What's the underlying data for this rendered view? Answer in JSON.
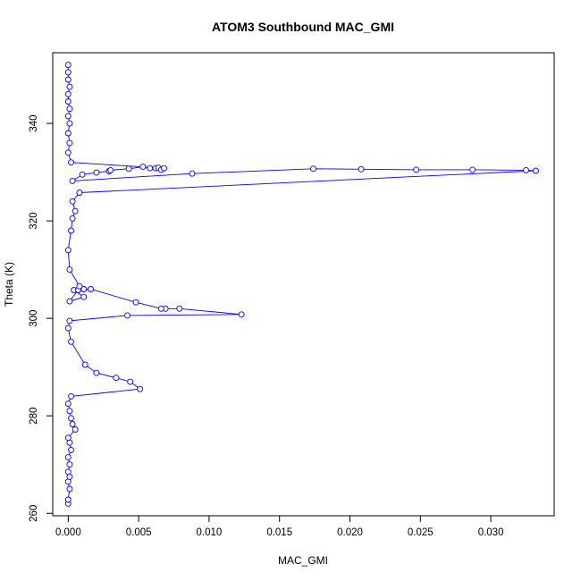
{
  "chart_data": {
    "type": "line",
    "title": "ATOM3 Southbound MAC_GMI",
    "xlabel": "MAC_GMI",
    "ylabel": "Theta (K)",
    "xlim": [
      -0.0011,
      0.0345
    ],
    "ylim": [
      259.5,
      354.5
    ],
    "xticks": [
      0.0,
      0.005,
      0.01,
      0.015,
      0.02,
      0.025,
      0.03
    ],
    "xtick_labels": [
      "0.000",
      "0.005",
      "0.010",
      "0.015",
      "0.020",
      "0.025",
      "0.030"
    ],
    "yticks": [
      260,
      280,
      300,
      320,
      340
    ],
    "ytick_labels": [
      "260",
      "280",
      "300",
      "320",
      "340"
    ],
    "grid": false,
    "legend": "none",
    "series_color": "#0000ff",
    "marker": "open-circle",
    "series": [
      {
        "values": [
          {
            "x": 0.0,
            "y": 262.0
          },
          {
            "x": 0.0,
            "y": 262.8
          },
          {
            "x": 0.0001,
            "y": 265.0
          },
          {
            "x": 0.0,
            "y": 266.5
          },
          {
            "x": 0.0001,
            "y": 267.5
          },
          {
            "x": 0.0,
            "y": 268.5
          },
          {
            "x": 0.0001,
            "y": 270.0
          },
          {
            "x": 0.0,
            "y": 271.5
          },
          {
            "x": 0.0002,
            "y": 273.0
          },
          {
            "x": 0.0001,
            "y": 274.5
          },
          {
            "x": 0.0,
            "y": 275.5
          },
          {
            "x": 0.0005,
            "y": 277.2
          },
          {
            "x": 0.0003,
            "y": 278.3
          },
          {
            "x": 0.0002,
            "y": 279.5
          },
          {
            "x": 0.0001,
            "y": 281.0
          },
          {
            "x": 0.0,
            "y": 282.5
          },
          {
            "x": 0.0002,
            "y": 284.0
          },
          {
            "x": 0.0051,
            "y": 285.5
          },
          {
            "x": 0.0044,
            "y": 287.0
          },
          {
            "x": 0.0034,
            "y": 287.8
          },
          {
            "x": 0.002,
            "y": 288.8
          },
          {
            "x": 0.0012,
            "y": 290.5
          },
          {
            "x": 0.0002,
            "y": 295.2
          },
          {
            "x": 0.0,
            "y": 298.0
          },
          {
            "x": 0.0001,
            "y": 299.5
          },
          {
            "x": 0.0042,
            "y": 300.6
          },
          {
            "x": 0.0123,
            "y": 300.8
          },
          {
            "x": 0.0079,
            "y": 302.0
          },
          {
            "x": 0.0069,
            "y": 302.0
          },
          {
            "x": 0.0066,
            "y": 302.0
          },
          {
            "x": 0.0048,
            "y": 303.3
          },
          {
            "x": 0.0016,
            "y": 306.0
          },
          {
            "x": 0.0004,
            "y": 305.8
          },
          {
            "x": 0.0011,
            "y": 304.4
          },
          {
            "x": 0.0001,
            "y": 303.5
          },
          {
            "x": 0.0007,
            "y": 305.8
          },
          {
            "x": 0.0011,
            "y": 306.0
          },
          {
            "x": 0.0008,
            "y": 306.6
          },
          {
            "x": 0.0001,
            "y": 310.0
          },
          {
            "x": 0.0,
            "y": 314.0
          },
          {
            "x": 0.0002,
            "y": 318.0
          },
          {
            "x": 0.0003,
            "y": 320.5
          },
          {
            "x": 0.0005,
            "y": 322.0
          },
          {
            "x": 0.0003,
            "y": 324.0
          },
          {
            "x": 0.0008,
            "y": 325.8
          },
          {
            "x": 0.0332,
            "y": 330.3
          },
          {
            "x": 0.0325,
            "y": 330.4
          },
          {
            "x": 0.0287,
            "y": 330.5
          },
          {
            "x": 0.0247,
            "y": 330.5
          },
          {
            "x": 0.0208,
            "y": 330.6
          },
          {
            "x": 0.0174,
            "y": 330.7
          },
          {
            "x": 0.0088,
            "y": 329.7
          },
          {
            "x": 0.0003,
            "y": 328.2
          },
          {
            "x": 0.001,
            "y": 329.5
          },
          {
            "x": 0.002,
            "y": 329.9
          },
          {
            "x": 0.0029,
            "y": 330.2
          },
          {
            "x": 0.003,
            "y": 330.4
          },
          {
            "x": 0.0043,
            "y": 330.7
          },
          {
            "x": 0.0053,
            "y": 331.1
          },
          {
            "x": 0.0058,
            "y": 330.8
          },
          {
            "x": 0.0062,
            "y": 330.8
          },
          {
            "x": 0.0064,
            "y": 330.9
          },
          {
            "x": 0.0066,
            "y": 330.5
          },
          {
            "x": 0.0068,
            "y": 330.8
          },
          {
            "x": 0.0002,
            "y": 332.0
          },
          {
            "x": 0.0,
            "y": 334.0
          },
          {
            "x": 0.0001,
            "y": 336.0
          },
          {
            "x": 0.0,
            "y": 338.0
          },
          {
            "x": 0.0001,
            "y": 340.0
          },
          {
            "x": 0.0,
            "y": 341.5
          },
          {
            "x": 0.0001,
            "y": 343.0
          },
          {
            "x": 0.0,
            "y": 344.5
          },
          {
            "x": 0.0,
            "y": 346.0
          },
          {
            "x": 0.0001,
            "y": 347.5
          },
          {
            "x": 0.0,
            "y": 349.0
          },
          {
            "x": 0.0,
            "y": 350.5
          },
          {
            "x": 0.0,
            "y": 352.0
          }
        ]
      }
    ]
  }
}
